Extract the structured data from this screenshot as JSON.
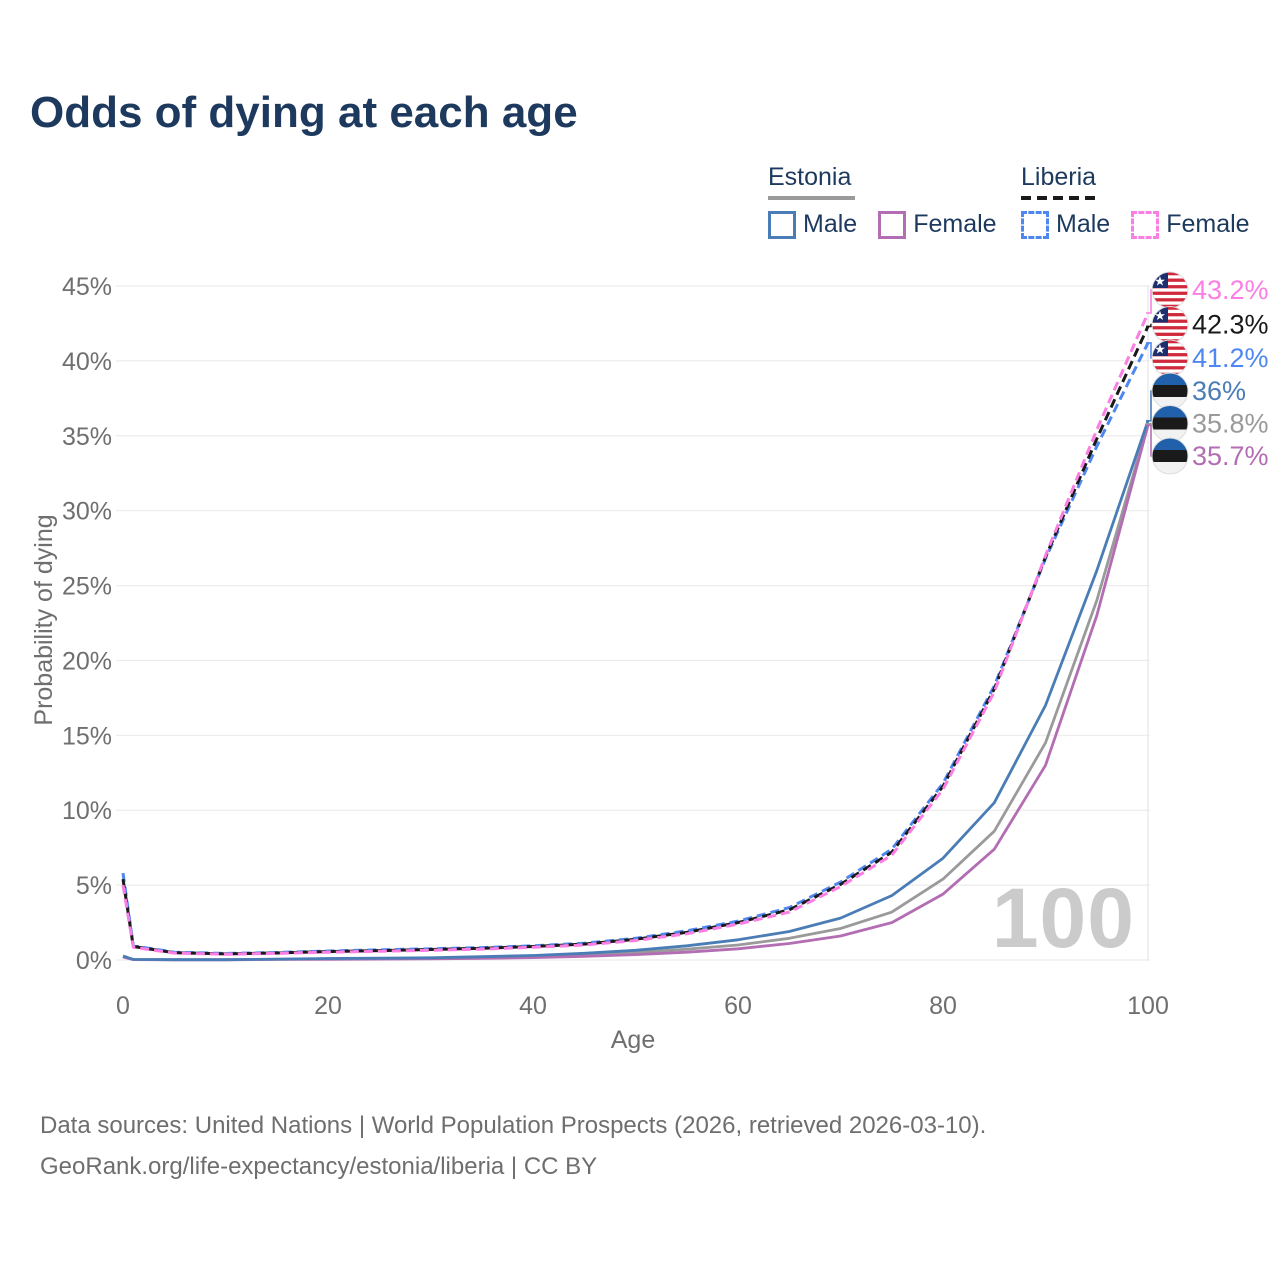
{
  "title": "Odds of dying at each age",
  "legend": {
    "estonia": {
      "label": "Estonia",
      "male": "Male",
      "female": "Female"
    },
    "liberia": {
      "label": "Liberia",
      "male": "Male",
      "female": "Female"
    }
  },
  "watermark": "100",
  "chart_data": {
    "type": "line",
    "title": "Odds of dying at each age",
    "xlabel": "Age",
    "ylabel": "Probability of dying",
    "xlim": [
      0,
      100
    ],
    "ylim": [
      0,
      45
    ],
    "x_ticks": [
      0,
      20,
      40,
      60,
      80,
      100
    ],
    "y_ticks": [
      0,
      5,
      10,
      15,
      20,
      25,
      30,
      35,
      40,
      45
    ],
    "y_tick_suffix": "%",
    "grid": "horizontal",
    "legend_position": "top-right",
    "ages": [
      0,
      1,
      5,
      10,
      15,
      20,
      25,
      30,
      35,
      40,
      45,
      50,
      55,
      60,
      65,
      70,
      75,
      80,
      85,
      90,
      95,
      100
    ],
    "series": [
      {
        "name": "Liberia Female",
        "country": "Liberia",
        "sex": "Female",
        "color": "#fb7ee4",
        "dashed": true,
        "flag": "liberia",
        "end_label": "43.2%",
        "end_value": 43.2,
        "values": [
          5.0,
          0.85,
          0.46,
          0.38,
          0.44,
          0.52,
          0.58,
          0.65,
          0.73,
          0.85,
          1.0,
          1.3,
          1.75,
          2.4,
          3.2,
          4.9,
          7.0,
          11.4,
          17.9,
          27.0,
          35.4,
          43.2
        ]
      },
      {
        "name": "Liberia Both sexes",
        "country": "Liberia",
        "sex": "Both",
        "color": "#1a1a1a",
        "dashed": true,
        "flag": "liberia",
        "end_label": "42.3%",
        "end_value": 42.3,
        "values": [
          5.4,
          0.9,
          0.49,
          0.41,
          0.47,
          0.56,
          0.63,
          0.7,
          0.78,
          0.9,
          1.06,
          1.38,
          1.85,
          2.5,
          3.35,
          5.05,
          7.2,
          11.6,
          18.1,
          26.9,
          34.8,
          42.3
        ]
      },
      {
        "name": "Liberia Male",
        "country": "Liberia",
        "sex": "Male",
        "color": "#4f87f0",
        "dashed": true,
        "flag": "liberia",
        "end_label": "41.2%",
        "end_value": 41.2,
        "values": [
          5.8,
          0.95,
          0.52,
          0.44,
          0.5,
          0.6,
          0.68,
          0.75,
          0.83,
          0.95,
          1.12,
          1.45,
          1.95,
          2.6,
          3.5,
          5.2,
          7.4,
          11.8,
          18.3,
          26.8,
          34.3,
          41.2
        ]
      },
      {
        "name": "Estonia Male",
        "country": "Estonia",
        "sex": "Male",
        "color": "#4a7db6",
        "dashed": false,
        "flag": "estonia",
        "end_label": "36%",
        "end_value": 36.0,
        "values": [
          0.27,
          0.04,
          0.02,
          0.02,
          0.06,
          0.1,
          0.12,
          0.15,
          0.22,
          0.3,
          0.45,
          0.65,
          0.95,
          1.35,
          1.9,
          2.8,
          4.3,
          6.8,
          10.5,
          17.0,
          26.0,
          36.0
        ]
      },
      {
        "name": "Estonia Both sexes",
        "country": "Estonia",
        "sex": "Both",
        "color": "#9a9a9a",
        "dashed": false,
        "flag": "estonia",
        "end_label": "35.8%",
        "end_value": 35.8,
        "values": [
          0.23,
          0.035,
          0.018,
          0.018,
          0.05,
          0.08,
          0.09,
          0.12,
          0.17,
          0.23,
          0.34,
          0.5,
          0.72,
          1.0,
          1.45,
          2.1,
          3.2,
          5.4,
          8.6,
          14.5,
          24.0,
          35.8
        ]
      },
      {
        "name": "Estonia Female",
        "country": "Estonia",
        "sex": "Female",
        "color": "#b36db3",
        "dashed": false,
        "flag": "estonia",
        "end_label": "35.7%",
        "end_value": 35.7,
        "values": [
          0.2,
          0.03,
          0.015,
          0.015,
          0.04,
          0.05,
          0.06,
          0.08,
          0.11,
          0.16,
          0.24,
          0.36,
          0.52,
          0.75,
          1.1,
          1.6,
          2.5,
          4.4,
          7.4,
          13.0,
          23.0,
          35.7
        ]
      }
    ]
  },
  "footer": {
    "line1": "Data sources: United Nations | World Population Prospects (2026, retrieved 2026-03-10).",
    "line2": "GeoRank.org/life-expectancy/estonia/liberia | CC BY"
  }
}
